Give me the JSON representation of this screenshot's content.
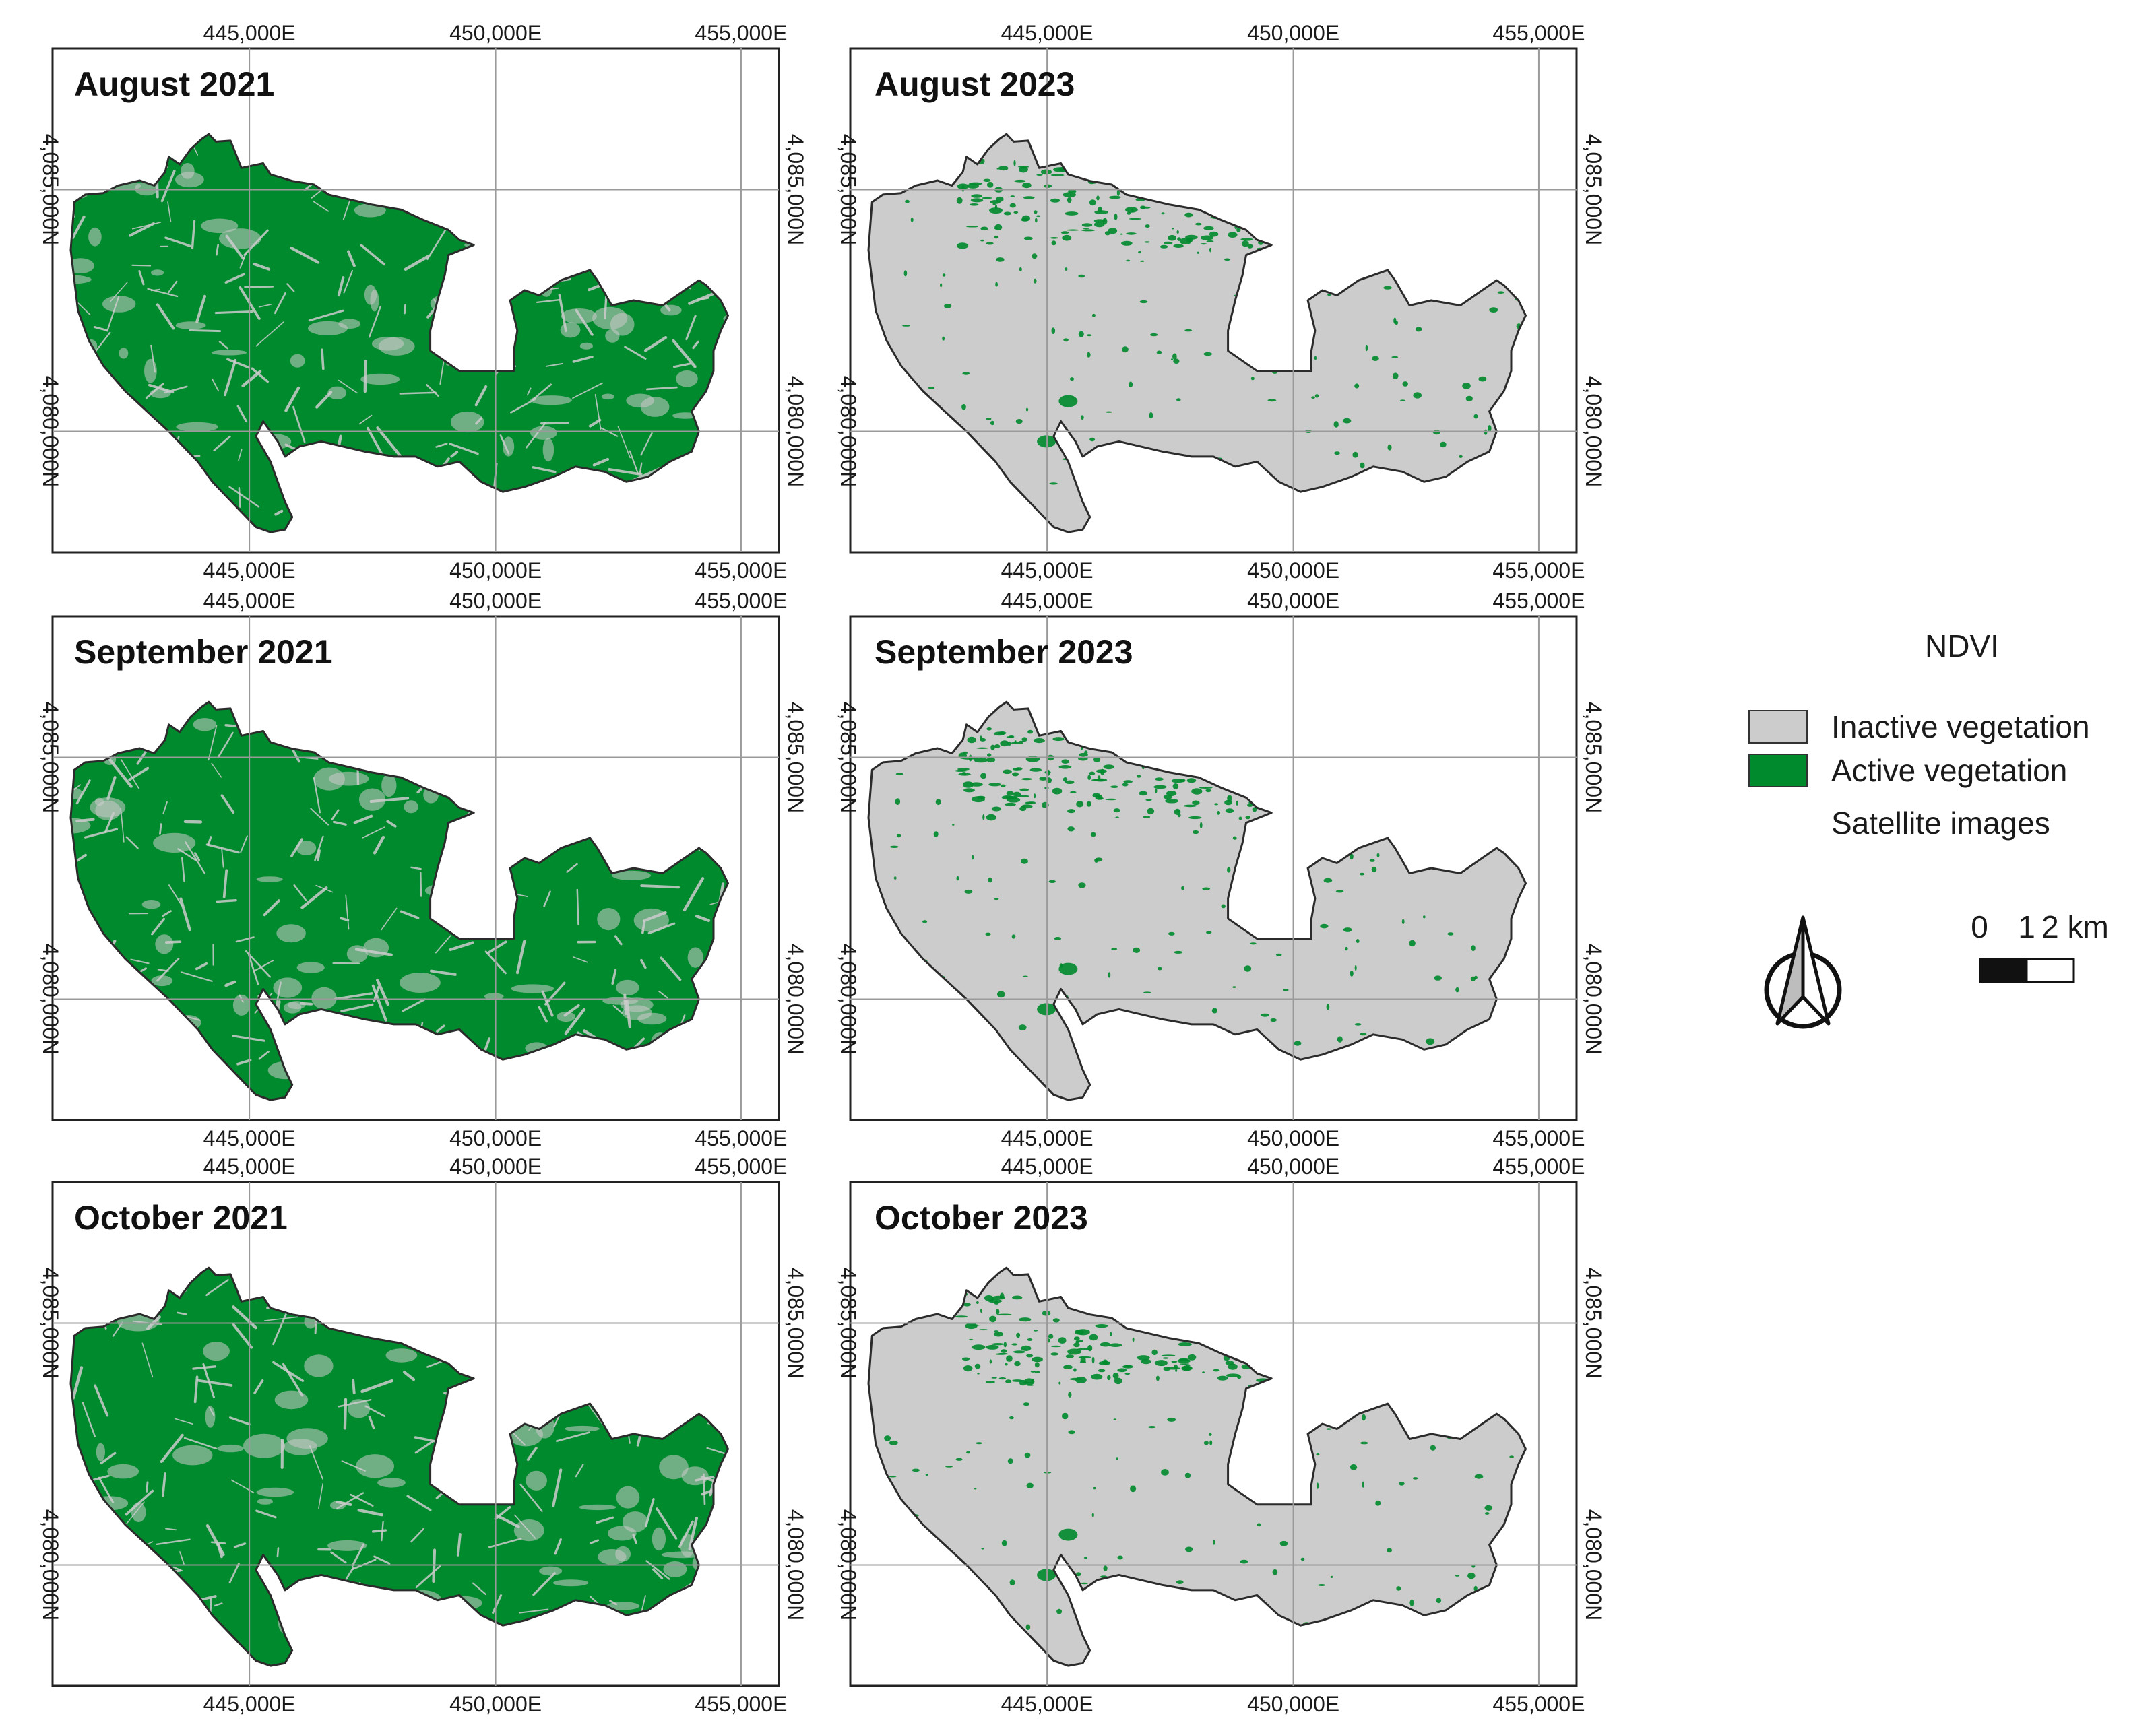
{
  "legend": {
    "title": "NDVI",
    "items": [
      {
        "label": "Inactive vegetation",
        "color": "#cccccc"
      },
      {
        "label": "Active vegetation",
        "color": "#008a2e"
      }
    ],
    "extra": "Satellite images"
  },
  "scale_bar": {
    "labels": [
      "0",
      "1",
      "2 km"
    ]
  },
  "north_arrow": {
    "icon": "north-arrow-icon"
  },
  "axes": {
    "x_ticks": [
      "445,000E",
      "450,000E",
      "455,000E"
    ],
    "y_ticks": [
      "4,085,000N",
      "4,080,000N"
    ]
  },
  "colors": {
    "inactive": "#cccccc",
    "active": "#008a2e",
    "outline": "#2b2b2b",
    "grid": "#9a9a9a"
  },
  "panels": [
    {
      "title": "August 2021",
      "vegetation": "high"
    },
    {
      "title": "August 2023",
      "vegetation": "low"
    },
    {
      "title": "September 2021",
      "vegetation": "high"
    },
    {
      "title": "September 2023",
      "vegetation": "low"
    },
    {
      "title": "October 2021",
      "vegetation": "high"
    },
    {
      "title": "October 2023",
      "vegetation": "low"
    }
  ]
}
